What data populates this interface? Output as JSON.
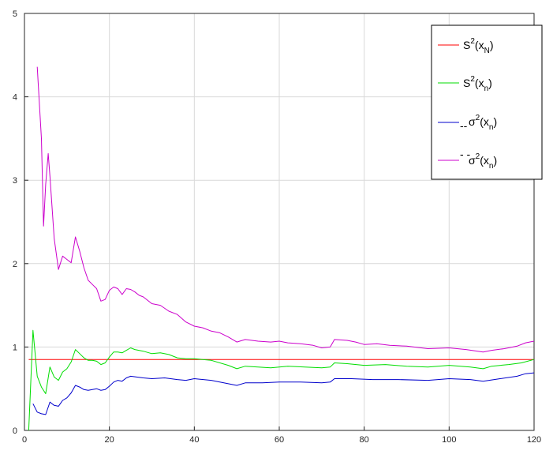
{
  "chart_data": {
    "type": "line",
    "title": "",
    "xlabel": "",
    "ylabel": "",
    "xlim": [
      0,
      120
    ],
    "ylim": [
      0,
      5
    ],
    "x_ticks": [
      "0",
      "20",
      "40",
      "60",
      "80",
      "100",
      "120"
    ],
    "y_ticks": [
      "0",
      "1",
      "2",
      "3",
      "4",
      "5"
    ],
    "grid": true,
    "legend_position": "top-right",
    "series": [
      {
        "name": "S^2(x_N)",
        "legend": {
          "base": "S",
          "sup": "2",
          "open": "(x",
          "sub": "N",
          "close": ")"
        },
        "color": "#ff0000",
        "points": [
          [
            1,
            0.85
          ],
          [
            120,
            0.85
          ]
        ]
      },
      {
        "name": "S^2(x_n)",
        "legend": {
          "base": "S",
          "sup": "2",
          "open": "(x",
          "sub": "n",
          "close": ")"
        },
        "color": "#00dd00",
        "points": [
          [
            1,
            0.0
          ],
          [
            2,
            1.2
          ],
          [
            3,
            0.65
          ],
          [
            4,
            0.52
          ],
          [
            5,
            0.44
          ],
          [
            6,
            0.76
          ],
          [
            7,
            0.64
          ],
          [
            8,
            0.6
          ],
          [
            9,
            0.7
          ],
          [
            10,
            0.74
          ],
          [
            11,
            0.82
          ],
          [
            12,
            0.97
          ],
          [
            13,
            0.92
          ],
          [
            14,
            0.87
          ],
          [
            15,
            0.84
          ],
          [
            16,
            0.84
          ],
          [
            17,
            0.83
          ],
          [
            18,
            0.79
          ],
          [
            19,
            0.81
          ],
          [
            20,
            0.88
          ],
          [
            21,
            0.94
          ],
          [
            22,
            0.94
          ],
          [
            23,
            0.93
          ],
          [
            24,
            0.96
          ],
          [
            25,
            0.99
          ],
          [
            26,
            0.97
          ],
          [
            28,
            0.95
          ],
          [
            30,
            0.92
          ],
          [
            32,
            0.93
          ],
          [
            34,
            0.91
          ],
          [
            36,
            0.87
          ],
          [
            38,
            0.86
          ],
          [
            40,
            0.86
          ],
          [
            44,
            0.84
          ],
          [
            48,
            0.78
          ],
          [
            50,
            0.74
          ],
          [
            52,
            0.77
          ],
          [
            55,
            0.76
          ],
          [
            58,
            0.75
          ],
          [
            62,
            0.77
          ],
          [
            66,
            0.76
          ],
          [
            70,
            0.75
          ],
          [
            72,
            0.76
          ],
          [
            73,
            0.81
          ],
          [
            76,
            0.8
          ],
          [
            80,
            0.78
          ],
          [
            85,
            0.79
          ],
          [
            90,
            0.77
          ],
          [
            95,
            0.76
          ],
          [
            100,
            0.78
          ],
          [
            105,
            0.76
          ],
          [
            108,
            0.74
          ],
          [
            110,
            0.77
          ],
          [
            114,
            0.79
          ],
          [
            117,
            0.81
          ],
          [
            120,
            0.85
          ]
        ]
      },
      {
        "name": "σ^2(x_n)",
        "legend": {
          "base": "σ",
          "sup": "2",
          "open": "(x",
          "sub": "n",
          "close": ")",
          "accent": "--"
        },
        "color": "#0000cc",
        "points": [
          [
            2,
            0.32
          ],
          [
            3,
            0.22
          ],
          [
            4,
            0.2
          ],
          [
            5,
            0.19
          ],
          [
            6,
            0.34
          ],
          [
            7,
            0.3
          ],
          [
            8,
            0.29
          ],
          [
            9,
            0.36
          ],
          [
            10,
            0.39
          ],
          [
            11,
            0.45
          ],
          [
            12,
            0.54
          ],
          [
            13,
            0.52
          ],
          [
            14,
            0.49
          ],
          [
            15,
            0.48
          ],
          [
            16,
            0.49
          ],
          [
            17,
            0.5
          ],
          [
            18,
            0.48
          ],
          [
            19,
            0.49
          ],
          [
            20,
            0.53
          ],
          [
            21,
            0.58
          ],
          [
            22,
            0.6
          ],
          [
            23,
            0.59
          ],
          [
            24,
            0.63
          ],
          [
            25,
            0.65
          ],
          [
            28,
            0.63
          ],
          [
            30,
            0.62
          ],
          [
            33,
            0.63
          ],
          [
            36,
            0.61
          ],
          [
            38,
            0.6
          ],
          [
            40,
            0.62
          ],
          [
            44,
            0.6
          ],
          [
            48,
            0.56
          ],
          [
            50,
            0.54
          ],
          [
            52,
            0.57
          ],
          [
            56,
            0.57
          ],
          [
            60,
            0.58
          ],
          [
            65,
            0.58
          ],
          [
            70,
            0.57
          ],
          [
            72,
            0.58
          ],
          [
            73,
            0.62
          ],
          [
            77,
            0.62
          ],
          [
            82,
            0.61
          ],
          [
            88,
            0.61
          ],
          [
            95,
            0.6
          ],
          [
            100,
            0.62
          ],
          [
            105,
            0.61
          ],
          [
            108,
            0.59
          ],
          [
            112,
            0.62
          ],
          [
            116,
            0.65
          ],
          [
            118,
            0.68
          ],
          [
            120,
            0.69
          ]
        ]
      },
      {
        "name": "σ^2(x_n) (double-dash accent)",
        "legend": {
          "base": "σ",
          "sup": "2",
          "open": "(x",
          "sub": "n",
          "close": ")",
          "accent": "- -"
        },
        "color": "#cc00cc",
        "points": [
          [
            3,
            4.36
          ],
          [
            4,
            3.5
          ],
          [
            4.5,
            2.45
          ],
          [
            5,
            2.95
          ],
          [
            5.6,
            3.32
          ],
          [
            6,
            3.05
          ],
          [
            7,
            2.3
          ],
          [
            8,
            1.93
          ],
          [
            9,
            2.09
          ],
          [
            10,
            2.05
          ],
          [
            11,
            2.01
          ],
          [
            12,
            2.32
          ],
          [
            13,
            2.15
          ],
          [
            14,
            1.95
          ],
          [
            15,
            1.8
          ],
          [
            16,
            1.75
          ],
          [
            17,
            1.7
          ],
          [
            18,
            1.55
          ],
          [
            19,
            1.57
          ],
          [
            20,
            1.68
          ],
          [
            21,
            1.72
          ],
          [
            22,
            1.7
          ],
          [
            23,
            1.63
          ],
          [
            24,
            1.7
          ],
          [
            25,
            1.69
          ],
          [
            26,
            1.66
          ],
          [
            27,
            1.62
          ],
          [
            28,
            1.6
          ],
          [
            30,
            1.52
          ],
          [
            32,
            1.5
          ],
          [
            34,
            1.43
          ],
          [
            36,
            1.39
          ],
          [
            38,
            1.3
          ],
          [
            40,
            1.25
          ],
          [
            42,
            1.23
          ],
          [
            44,
            1.19
          ],
          [
            46,
            1.17
          ],
          [
            48,
            1.12
          ],
          [
            50,
            1.06
          ],
          [
            52,
            1.09
          ],
          [
            55,
            1.07
          ],
          [
            58,
            1.06
          ],
          [
            60,
            1.07
          ],
          [
            62,
            1.05
          ],
          [
            65,
            1.04
          ],
          [
            68,
            1.02
          ],
          [
            70,
            0.99
          ],
          [
            72,
            1.0
          ],
          [
            73,
            1.09
          ],
          [
            76,
            1.08
          ],
          [
            78,
            1.06
          ],
          [
            80,
            1.03
          ],
          [
            83,
            1.04
          ],
          [
            86,
            1.02
          ],
          [
            90,
            1.01
          ],
          [
            95,
            0.98
          ],
          [
            100,
            0.99
          ],
          [
            104,
            0.97
          ],
          [
            108,
            0.94
          ],
          [
            110,
            0.96
          ],
          [
            113,
            0.98
          ],
          [
            116,
            1.01
          ],
          [
            118,
            1.05
          ],
          [
            120,
            1.07
          ]
        ]
      }
    ]
  }
}
